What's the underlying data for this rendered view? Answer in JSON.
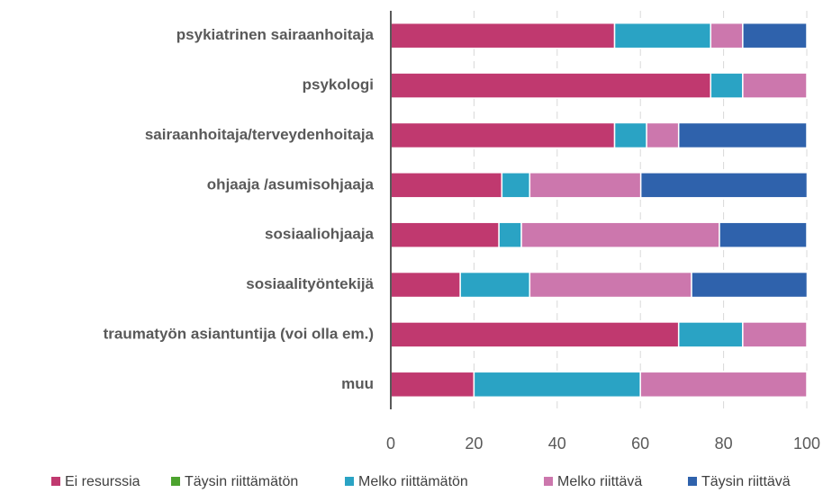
{
  "chart_data": {
    "type": "stacked_barh",
    "categories": [
      "psykiatrinen sairaanhoitaja",
      "psykologi",
      "sairaanhoitaja/terveydenhoitaja",
      "ohjaaja /asumisohjaaja",
      "sosiaaliohjaaja",
      "sosiaalityöntekijä",
      "traumatyön asiantuntija (voi olla em.)",
      "muu"
    ],
    "series": [
      {
        "name": "Ei resurssia",
        "color": "#c0396f",
        "values": [
          53.8,
          76.9,
          53.8,
          26.7,
          26.0,
          16.7,
          69.2,
          20
        ]
      },
      {
        "name": "Täysin riittämätön",
        "color": "#4ca32e",
        "values": [
          0,
          0,
          0,
          0,
          0,
          0,
          0,
          0
        ]
      },
      {
        "name": "Melko riittämätön",
        "color": "#2aa3c4",
        "values": [
          23.1,
          7.7,
          7.7,
          6.7,
          5.4,
          16.7,
          15.4,
          40
        ]
      },
      {
        "name": "Melko riittävä",
        "color": "#cc77ad",
        "values": [
          7.7,
          15.4,
          7.7,
          26.7,
          47.6,
          38.9,
          15.4,
          40
        ]
      },
      {
        "name": "Täysin riittävä",
        "color": "#2f62ac",
        "values": [
          15.4,
          0,
          30.8,
          40,
          21.0,
          27.8,
          0,
          0
        ]
      }
    ],
    "xlim": [
      0,
      100
    ],
    "xticks": [
      0,
      20,
      40,
      60,
      80,
      100
    ],
    "grid": true,
    "legend": "bottom"
  }
}
